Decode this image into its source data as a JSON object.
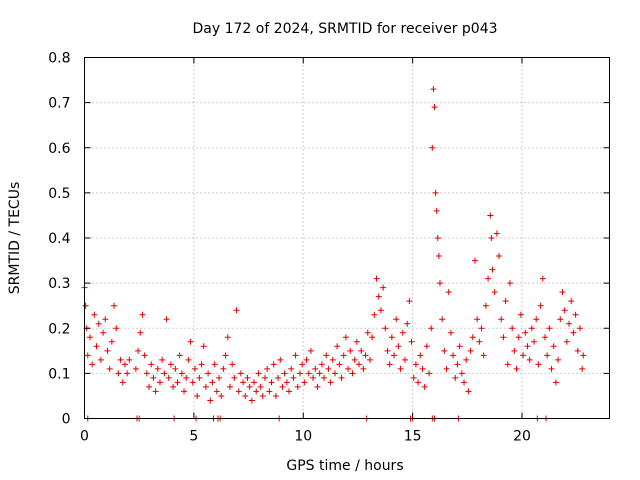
{
  "chart_data": {
    "type": "scatter",
    "title": "Day 172 of 2024, SRMTID for receiver p043",
    "xlabel": "GPS time / hours",
    "ylabel": "SRMTID / TECUs",
    "xlim": [
      0,
      24
    ],
    "ylim": [
      0,
      0.8
    ],
    "x_ticks": [
      0,
      5,
      10,
      15,
      20
    ],
    "x_tick_labels": [
      "0",
      "5",
      "10",
      "15",
      "20"
    ],
    "y_ticks": [
      0,
      0.1,
      0.2,
      0.3,
      0.4,
      0.5,
      0.6,
      0.7,
      0.8
    ],
    "y_tick_labels": [
      "0",
      "0.1",
      "0.2",
      "0.3",
      "0.4",
      "0.5",
      "0.6",
      "0.7",
      "0.8"
    ],
    "grid": true,
    "marker": "+",
    "series_color": "#e00000",
    "series": [
      {
        "name": "SRMTID",
        "points": [
          [
            0.0,
            0.29
          ],
          [
            0.05,
            0.25
          ],
          [
            0.1,
            0.2
          ],
          [
            0.15,
            0.14
          ],
          [
            0.25,
            0.18
          ],
          [
            0.35,
            0.12
          ],
          [
            0.45,
            0.23
          ],
          [
            0.55,
            0.16
          ],
          [
            0.65,
            0.21
          ],
          [
            0.75,
            0.13
          ],
          [
            0.85,
            0.19
          ],
          [
            0.95,
            0.22
          ],
          [
            1.05,
            0.15
          ],
          [
            1.15,
            0.11
          ],
          [
            1.25,
            0.17
          ],
          [
            1.35,
            0.25
          ],
          [
            1.45,
            0.2
          ],
          [
            1.55,
            0.1
          ],
          [
            1.65,
            0.13
          ],
          [
            1.75,
            0.08
          ],
          [
            1.85,
            0.12
          ],
          [
            1.95,
            0.1
          ],
          [
            2.05,
            0.13
          ],
          [
            2.35,
            0.11
          ],
          [
            2.45,
            0.15
          ],
          [
            2.55,
            0.19
          ],
          [
            2.65,
            0.23
          ],
          [
            2.75,
            0.14
          ],
          [
            2.85,
            0.1
          ],
          [
            2.95,
            0.07
          ],
          [
            3.05,
            0.12
          ],
          [
            3.15,
            0.09
          ],
          [
            3.25,
            0.06
          ],
          [
            3.35,
            0.11
          ],
          [
            3.45,
            0.08
          ],
          [
            3.55,
            0.13
          ],
          [
            3.65,
            0.1
          ],
          [
            3.75,
            0.22
          ],
          [
            3.85,
            0.09
          ],
          [
            3.95,
            0.12
          ],
          [
            4.05,
            0.07
          ],
          [
            4.15,
            0.11
          ],
          [
            4.25,
            0.08
          ],
          [
            4.35,
            0.14
          ],
          [
            4.45,
            0.1
          ],
          [
            4.55,
            0.06
          ],
          [
            4.65,
            0.09
          ],
          [
            4.75,
            0.13
          ],
          [
            4.85,
            0.17
          ],
          [
            4.95,
            0.08
          ],
          [
            5.05,
            0.11
          ],
          [
            5.15,
            0.05
          ],
          [
            5.25,
            0.09
          ],
          [
            5.35,
            0.12
          ],
          [
            5.45,
            0.16
          ],
          [
            5.55,
            0.07
          ],
          [
            5.65,
            0.1
          ],
          [
            5.75,
            0.04
          ],
          [
            5.85,
            0.08
          ],
          [
            5.95,
            0.12
          ],
          [
            6.05,
            0.06
          ],
          [
            6.15,
            0.09
          ],
          [
            6.25,
            0.05
          ],
          [
            6.35,
            0.11
          ],
          [
            6.45,
            0.14
          ],
          [
            6.55,
            0.18
          ],
          [
            6.65,
            0.07
          ],
          [
            6.75,
            0.12
          ],
          [
            6.85,
            0.09
          ],
          [
            6.95,
            0.24
          ],
          [
            7.05,
            0.06
          ],
          [
            7.15,
            0.1
          ],
          [
            7.25,
            0.08
          ],
          [
            7.35,
            0.05
          ],
          [
            7.45,
            0.09
          ],
          [
            7.55,
            0.07
          ],
          [
            7.65,
            0.04
          ],
          [
            7.75,
            0.08
          ],
          [
            7.85,
            0.06
          ],
          [
            7.95,
            0.1
          ],
          [
            8.05,
            0.07
          ],
          [
            8.15,
            0.05
          ],
          [
            8.25,
            0.09
          ],
          [
            8.35,
            0.11
          ],
          [
            8.45,
            0.06
          ],
          [
            8.55,
            0.08
          ],
          [
            8.65,
            0.12
          ],
          [
            8.75,
            0.05
          ],
          [
            8.85,
            0.09
          ],
          [
            8.95,
            0.13
          ],
          [
            9.05,
            0.07
          ],
          [
            9.15,
            0.1
          ],
          [
            9.25,
            0.08
          ],
          [
            9.35,
            0.06
          ],
          [
            9.45,
            0.11
          ],
          [
            9.55,
            0.09
          ],
          [
            9.65,
            0.14
          ],
          [
            9.75,
            0.07
          ],
          [
            9.85,
            0.1
          ],
          [
            9.95,
            0.12
          ],
          [
            10.05,
            0.08
          ],
          [
            10.15,
            0.13
          ],
          [
            10.25,
            0.1
          ],
          [
            10.35,
            0.15
          ],
          [
            10.45,
            0.09
          ],
          [
            10.55,
            0.11
          ],
          [
            10.65,
            0.07
          ],
          [
            10.75,
            0.1
          ],
          [
            10.85,
            0.12
          ],
          [
            10.95,
            0.09
          ],
          [
            11.05,
            0.14
          ],
          [
            11.15,
            0.11
          ],
          [
            11.25,
            0.08
          ],
          [
            11.35,
            0.13
          ],
          [
            11.45,
            0.1
          ],
          [
            11.55,
            0.16
          ],
          [
            11.65,
            0.12
          ],
          [
            11.75,
            0.09
          ],
          [
            11.85,
            0.14
          ],
          [
            11.95,
            0.18
          ],
          [
            12.05,
            0.11
          ],
          [
            12.15,
            0.15
          ],
          [
            12.25,
            0.1
          ],
          [
            12.35,
            0.13
          ],
          [
            12.45,
            0.17
          ],
          [
            12.55,
            0.12
          ],
          [
            12.65,
            0.15
          ],
          [
            12.75,
            0.11
          ],
          [
            12.85,
            0.14
          ],
          [
            12.95,
            0.19
          ],
          [
            13.05,
            0.13
          ],
          [
            13.15,
            0.18
          ],
          [
            13.25,
            0.23
          ],
          [
            13.35,
            0.31
          ],
          [
            13.45,
            0.27
          ],
          [
            13.55,
            0.24
          ],
          [
            13.65,
            0.29
          ],
          [
            13.75,
            0.2
          ],
          [
            13.85,
            0.15
          ],
          [
            13.95,
            0.12
          ],
          [
            14.05,
            0.18
          ],
          [
            14.15,
            0.14
          ],
          [
            14.25,
            0.22
          ],
          [
            14.35,
            0.16
          ],
          [
            14.45,
            0.11
          ],
          [
            14.55,
            0.19
          ],
          [
            14.65,
            0.13
          ],
          [
            14.75,
            0.21
          ],
          [
            14.85,
            0.26
          ],
          [
            14.95,
            0.17
          ],
          [
            15.05,
            0.09
          ],
          [
            15.15,
            0.12
          ],
          [
            15.25,
            0.08
          ],
          [
            15.35,
            0.14
          ],
          [
            15.45,
            0.11
          ],
          [
            15.55,
            0.07
          ],
          [
            15.65,
            0.16
          ],
          [
            15.75,
            0.1
          ],
          [
            15.85,
            0.2
          ],
          [
            15.9,
            0.6
          ],
          [
            15.95,
            0.73
          ],
          [
            16.0,
            0.69
          ],
          [
            16.05,
            0.5
          ],
          [
            16.1,
            0.46
          ],
          [
            16.15,
            0.4
          ],
          [
            16.2,
            0.36
          ],
          [
            16.25,
            0.3
          ],
          [
            16.35,
            0.22
          ],
          [
            16.45,
            0.15
          ],
          [
            16.55,
            0.11
          ],
          [
            16.65,
            0.28
          ],
          [
            16.75,
            0.19
          ],
          [
            16.85,
            0.14
          ],
          [
            16.95,
            0.09
          ],
          [
            17.05,
            0.12
          ],
          [
            17.15,
            0.16
          ],
          [
            17.25,
            0.1
          ],
          [
            17.35,
            0.08
          ],
          [
            17.45,
            0.13
          ],
          [
            17.55,
            0.06
          ],
          [
            17.65,
            0.15
          ],
          [
            17.75,
            0.18
          ],
          [
            17.85,
            0.35
          ],
          [
            17.95,
            0.22
          ],
          [
            18.05,
            0.17
          ],
          [
            18.15,
            0.2
          ],
          [
            18.25,
            0.14
          ],
          [
            18.35,
            0.25
          ],
          [
            18.45,
            0.31
          ],
          [
            18.55,
            0.45
          ],
          [
            18.6,
            0.4
          ],
          [
            18.65,
            0.33
          ],
          [
            18.75,
            0.28
          ],
          [
            18.85,
            0.41
          ],
          [
            18.95,
            0.36
          ],
          [
            19.05,
            0.22
          ],
          [
            19.15,
            0.18
          ],
          [
            19.25,
            0.26
          ],
          [
            19.35,
            0.12
          ],
          [
            19.45,
            0.3
          ],
          [
            19.55,
            0.2
          ],
          [
            19.65,
            0.15
          ],
          [
            19.75,
            0.11
          ],
          [
            19.85,
            0.18
          ],
          [
            19.95,
            0.23
          ],
          [
            20.05,
            0.14
          ],
          [
            20.15,
            0.19
          ],
          [
            20.25,
            0.16
          ],
          [
            20.35,
            0.13
          ],
          [
            20.45,
            0.2
          ],
          [
            20.55,
            0.17
          ],
          [
            20.65,
            0.22
          ],
          [
            20.75,
            0.12
          ],
          [
            20.85,
            0.25
          ],
          [
            20.95,
            0.31
          ],
          [
            21.05,
            0.18
          ],
          [
            21.15,
            0.14
          ],
          [
            21.25,
            0.2
          ],
          [
            21.35,
            0.11
          ],
          [
            21.45,
            0.16
          ],
          [
            21.55,
            0.08
          ],
          [
            21.65,
            0.13
          ],
          [
            21.75,
            0.22
          ],
          [
            21.85,
            0.28
          ],
          [
            21.95,
            0.24
          ],
          [
            22.05,
            0.17
          ],
          [
            22.15,
            0.21
          ],
          [
            22.25,
            0.26
          ],
          [
            22.35,
            0.19
          ],
          [
            22.45,
            0.23
          ],
          [
            22.55,
            0.15
          ],
          [
            22.65,
            0.2
          ],
          [
            22.75,
            0.11
          ],
          [
            22.8,
            0.14
          ]
        ],
        "zero_points": [
          0.15,
          2.4,
          2.5,
          4.1,
          5.1,
          5.9,
          6.1,
          6.2,
          8.9,
          12.9,
          14.9,
          15.0,
          15.9,
          16.0,
          17.1,
          20.7,
          21.1
        ]
      }
    ]
  }
}
